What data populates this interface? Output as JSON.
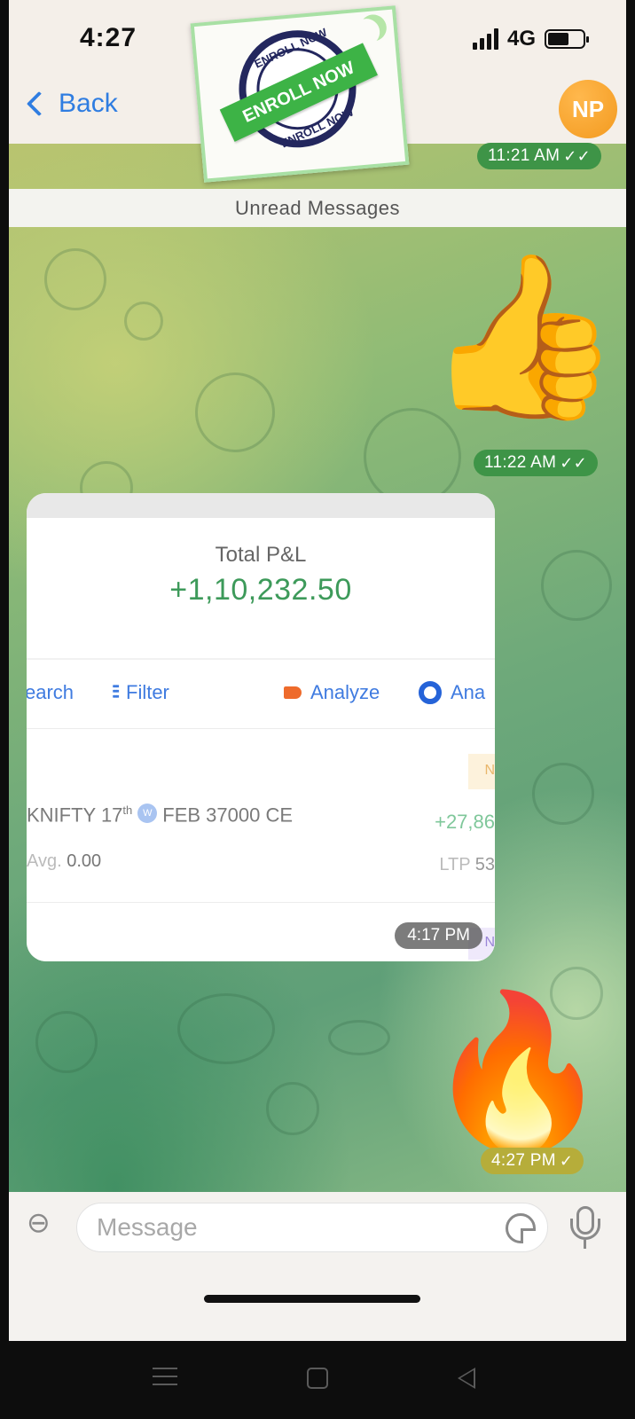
{
  "status_bar": {
    "time": "4:27",
    "network": "4G",
    "battery_level": 0.6
  },
  "header": {
    "back_label": "Back",
    "avatar_initials": "NP"
  },
  "sticker": {
    "ribbon_text": "ENROLL NOW",
    "ring_top_text": "ENROLL NOW",
    "ring_bottom_text": "ENROLL NOW"
  },
  "messages": {
    "first_time": "11:21 AM",
    "unread_banner": "Unread Messages",
    "thumbs_time": "11:22 AM",
    "screenshot_time": "4:17 PM",
    "fire_time": "4:27 PM",
    "double_tick": "✓✓",
    "single_tick": "✓"
  },
  "emojis": {
    "thumbs_up": "👍",
    "fire": "🔥"
  },
  "pnl_screenshot": {
    "summary_label": "Total P&L",
    "summary_value": "+1,10,232.50",
    "toolbar": {
      "search": "earch",
      "filter": "Filter",
      "analyze": "Analyze",
      "analyze2": "Ana"
    },
    "row1": {
      "symbol_prefix": "KNIFTY 17",
      "symbol_sup": "th",
      "badge": "W",
      "symbol_suffix": "FEB 37000 CE",
      "avg_label": "Avg.",
      "avg_value": "0.00",
      "pnl": "+27,86",
      "ltp_label": "LTP",
      "ltp_value": "53",
      "tag": "N"
    },
    "row2": {
      "tag": "N"
    }
  },
  "composer": {
    "placeholder": "Message"
  },
  "colors": {
    "accent_blue": "#2f7de1",
    "pill_green": "#3e9447",
    "pill_yellow": "#b6ad3a",
    "profit_green": "#3d9a5a",
    "avatar_orange": "#f39a1f"
  }
}
